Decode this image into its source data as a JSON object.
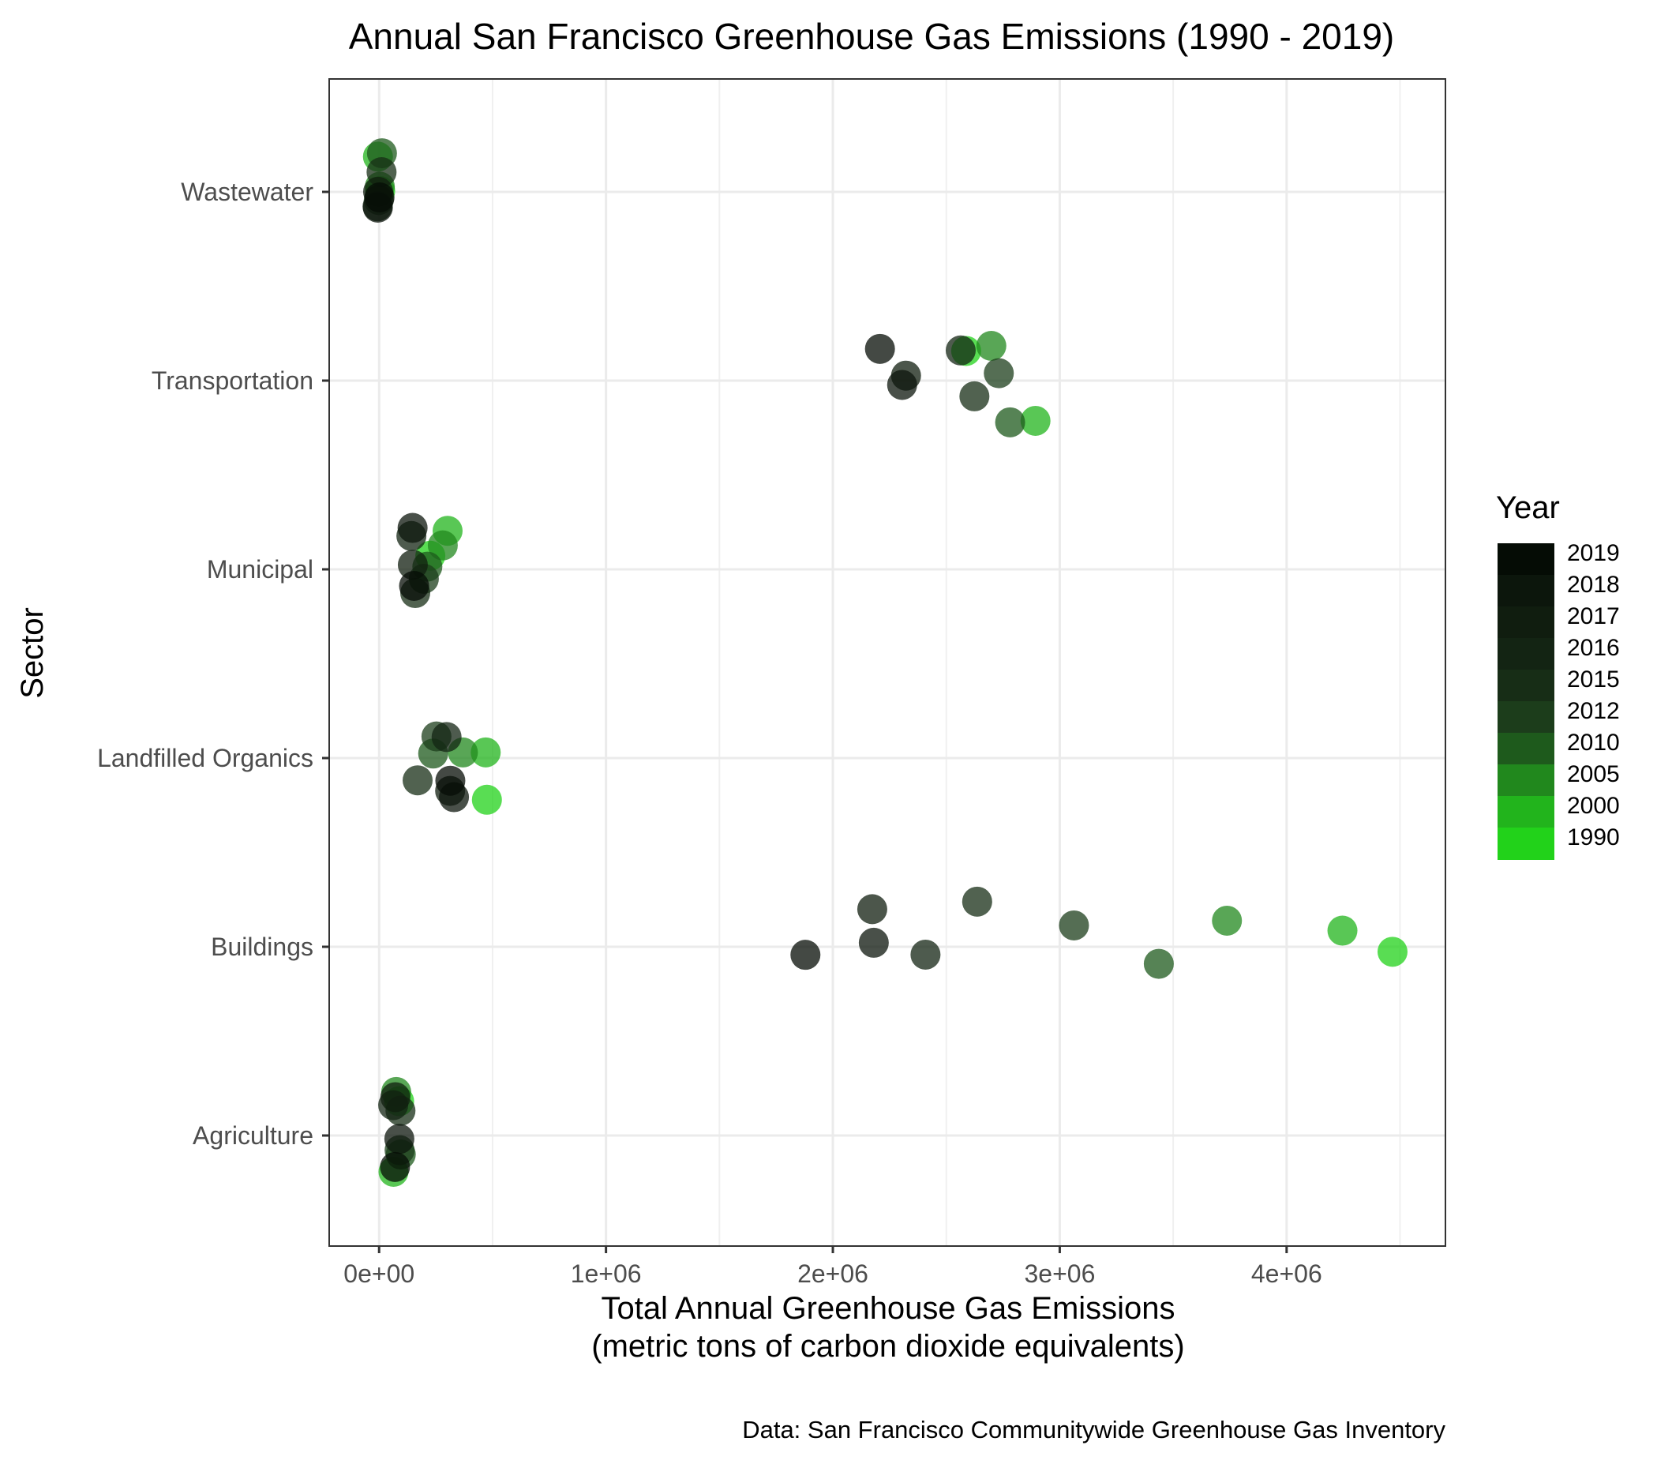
{
  "chart_data": {
    "type": "scatter",
    "title": "Annual San Francisco Greenhouse Gas Emissions (1990 - 2019)",
    "xlabel": [
      "Total Annual Greenhouse Gas Emissions",
      "(metric tons of carbon dioxide equivalents)"
    ],
    "ylabel": "Sector",
    "caption": "Data: San Francisco Communitywide Greenhouse Gas Inventory",
    "xlim": [
      -220000,
      4700000
    ],
    "x_ticks": [
      0,
      1000000,
      2000000,
      3000000,
      4000000
    ],
    "x_tick_labels": [
      "0e+00",
      "1e+06",
      "2e+06",
      "3e+06",
      "4e+06"
    ],
    "categories": [
      "Wastewater",
      "Transportation",
      "Municipal",
      "Landfilled Organics",
      "Buildings",
      "Agriculture"
    ],
    "grid": true,
    "legend": {
      "title": "Year",
      "placement": "right",
      "entries": [
        {
          "label": "2019",
          "color": "#050c05"
        },
        {
          "label": "2018",
          "color": "#0c160c"
        },
        {
          "label": "2017",
          "color": "#101d0f"
        },
        {
          "label": "2016",
          "color": "#132413"
        },
        {
          "label": "2015",
          "color": "#172d16"
        },
        {
          "label": "2012",
          "color": "#1c3d1b"
        },
        {
          "label": "2010",
          "color": "#1e5a1c"
        },
        {
          "label": "2005",
          "color": "#21881d"
        },
        {
          "label": "2000",
          "color": "#22b41c"
        },
        {
          "label": "1990",
          "color": "#22d21a"
        }
      ]
    },
    "series": [
      {
        "sector": "Wastewater",
        "points": [
          {
            "year": "2019",
            "x": 2000
          },
          {
            "year": "2018",
            "x": 4000
          },
          {
            "year": "2017",
            "x": 3000
          },
          {
            "year": "2016",
            "x": 5000
          },
          {
            "year": "2015",
            "x": 3000
          },
          {
            "year": "2012",
            "x": 1000
          },
          {
            "year": "2010",
            "x": 2000
          },
          {
            "year": "2005",
            "x": 3000
          },
          {
            "year": "2000",
            "x": 2000
          },
          {
            "year": "1990",
            "x": 3000
          }
        ]
      },
      {
        "sector": "Transportation",
        "points": [
          {
            "year": "2019",
            "x": 2200000
          },
          {
            "year": "2018",
            "x": 2310000
          },
          {
            "year": "2017",
            "x": 2330000
          },
          {
            "year": "2016",
            "x": 2550000
          },
          {
            "year": "2015",
            "x": 2630000
          },
          {
            "year": "2012",
            "x": 2730000
          },
          {
            "year": "2010",
            "x": 2790000
          },
          {
            "year": "2005",
            "x": 2700000
          },
          {
            "year": "2000",
            "x": 2880000
          },
          {
            "year": "1990",
            "x": 2600000
          }
        ]
      },
      {
        "sector": "Municipal",
        "points": [
          {
            "year": "2019",
            "x": 150000
          },
          {
            "year": "2018",
            "x": 150000
          },
          {
            "year": "2017",
            "x": 160000
          },
          {
            "year": "2016",
            "x": 150000
          },
          {
            "year": "2015",
            "x": 155000
          },
          {
            "year": "2012",
            "x": 200000
          },
          {
            "year": "2010",
            "x": 220000
          },
          {
            "year": "2005",
            "x": 270000
          },
          {
            "year": "2000",
            "x": 290000
          },
          {
            "year": "1990",
            "x": 230000
          }
        ]
      },
      {
        "sector": "Landfilled Organics",
        "points": [
          {
            "year": "2019",
            "x": 310000
          },
          {
            "year": "2018",
            "x": 320000
          },
          {
            "year": "2017",
            "x": 300000
          },
          {
            "year": "2016",
            "x": 290000
          },
          {
            "year": "2015",
            "x": 180000
          },
          {
            "year": "2012",
            "x": 260000
          },
          {
            "year": "2010",
            "x": 240000
          },
          {
            "year": "2005",
            "x": 360000
          },
          {
            "year": "2000",
            "x": 470000
          },
          {
            "year": "1990",
            "x": 480000
          }
        ]
      },
      {
        "sector": "Buildings",
        "points": [
          {
            "year": "2019",
            "x": 1880000
          },
          {
            "year": "2018",
            "x": 2170000
          },
          {
            "year": "2017",
            "x": 2160000
          },
          {
            "year": "2016",
            "x": 2410000
          },
          {
            "year": "2015",
            "x": 2640000
          },
          {
            "year": "2012",
            "x": 3050000
          },
          {
            "year": "2010",
            "x": 3430000
          },
          {
            "year": "2005",
            "x": 3740000
          },
          {
            "year": "2000",
            "x": 4250000
          },
          {
            "year": "1990",
            "x": 4480000
          }
        ]
      },
      {
        "sector": "Agriculture",
        "points": [
          {
            "year": "2019",
            "x": 80000
          },
          {
            "year": "2018",
            "x": 80000
          },
          {
            "year": "2017",
            "x": 85000
          },
          {
            "year": "2016",
            "x": 75000
          },
          {
            "year": "2015",
            "x": 85000
          },
          {
            "year": "2012",
            "x": 80000
          },
          {
            "year": "2010",
            "x": 90000
          },
          {
            "year": "2005",
            "x": 85000
          },
          {
            "year": "2000",
            "x": 70000
          },
          {
            "year": "1990",
            "x": 80000
          }
        ]
      }
    ]
  }
}
